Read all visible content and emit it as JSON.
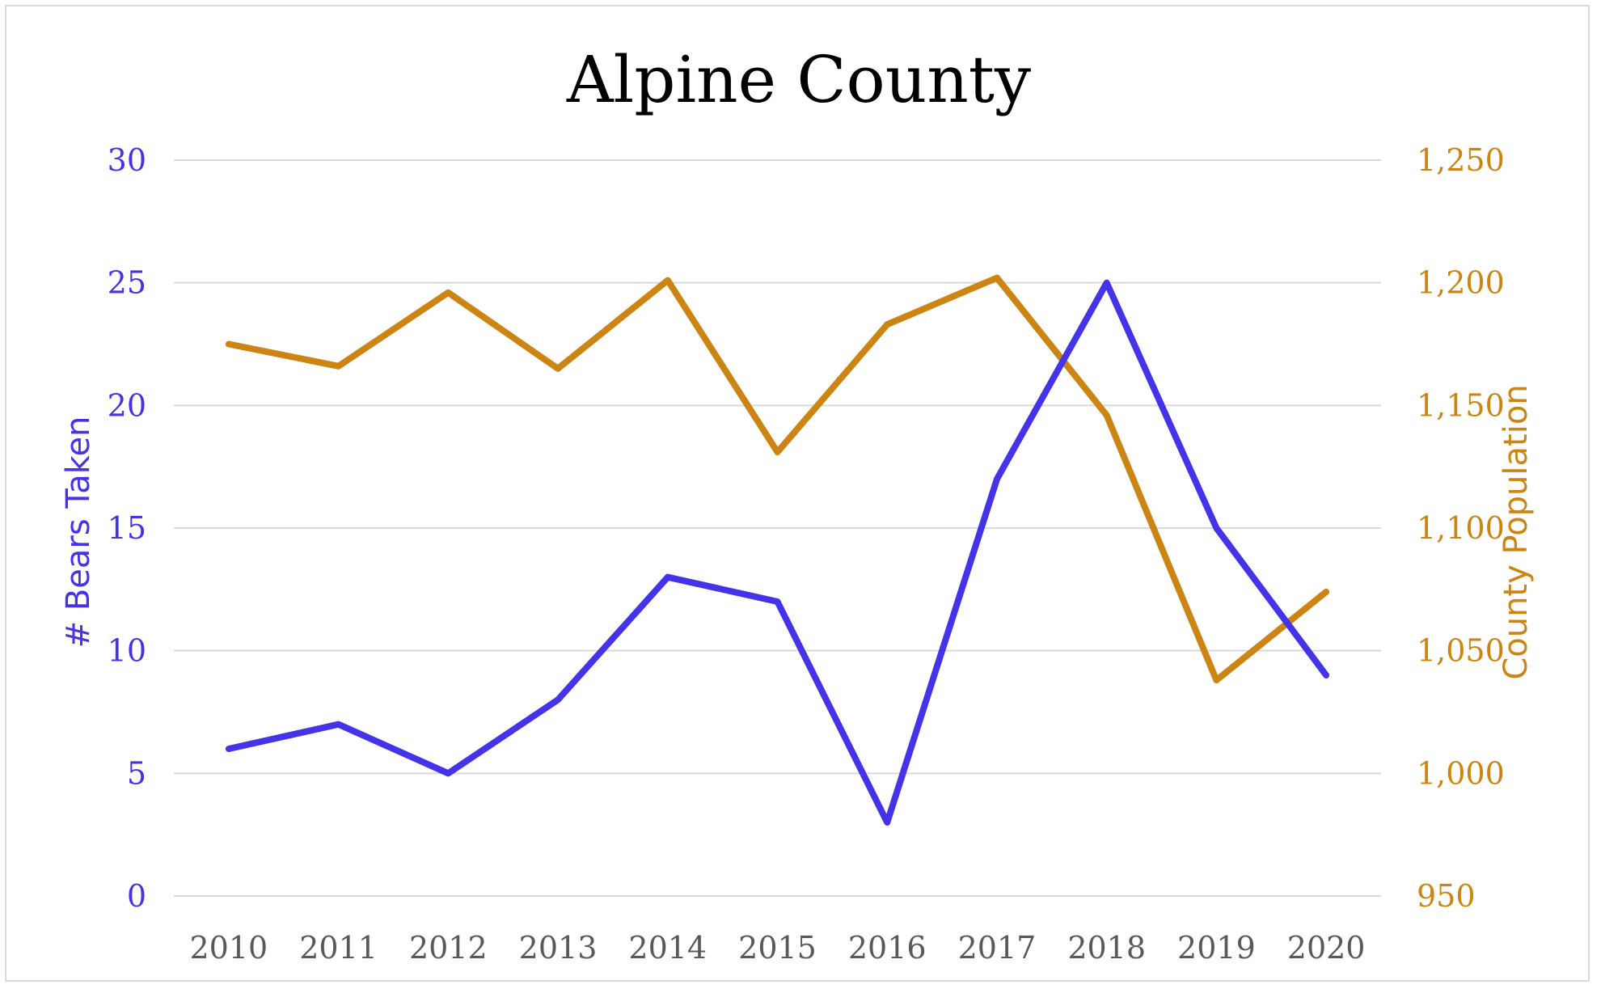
{
  "chart_data": {
    "type": "line",
    "title": "Alpine County",
    "x": [
      "2010",
      "2011",
      "2012",
      "2013",
      "2014",
      "2015",
      "2016",
      "2017",
      "2018",
      "2019",
      "2020"
    ],
    "series": [
      {
        "name": "# Bears Taken",
        "axis": "left",
        "color": "#4433e8",
        "values": [
          6,
          7,
          5,
          8,
          13,
          12,
          3,
          17,
          25,
          15,
          9
        ]
      },
      {
        "name": "County Population",
        "axis": "right",
        "color": "#cc8412",
        "values": [
          1175,
          1166,
          1196,
          1165,
          1201,
          1131,
          1183,
          1202,
          1146,
          1038,
          1074
        ]
      }
    ],
    "ylabel": "# Bears Taken",
    "ylabel_right": "County Population",
    "ylim": [
      0,
      30
    ],
    "yticks": [
      "0",
      "5",
      "10",
      "15",
      "20",
      "25",
      "30"
    ],
    "ylim_right": [
      950,
      1250
    ],
    "yticks_right": [
      "950",
      "1,000",
      "1,050",
      "1,100",
      "1,150",
      "1,200",
      "1,250"
    ],
    "grid": true,
    "legend": "none",
    "colors": {
      "left_axis": "#4433e8",
      "right_axis": "#cc8412",
      "x_axis": "#595959",
      "grid": "#d9d9d9"
    }
  }
}
